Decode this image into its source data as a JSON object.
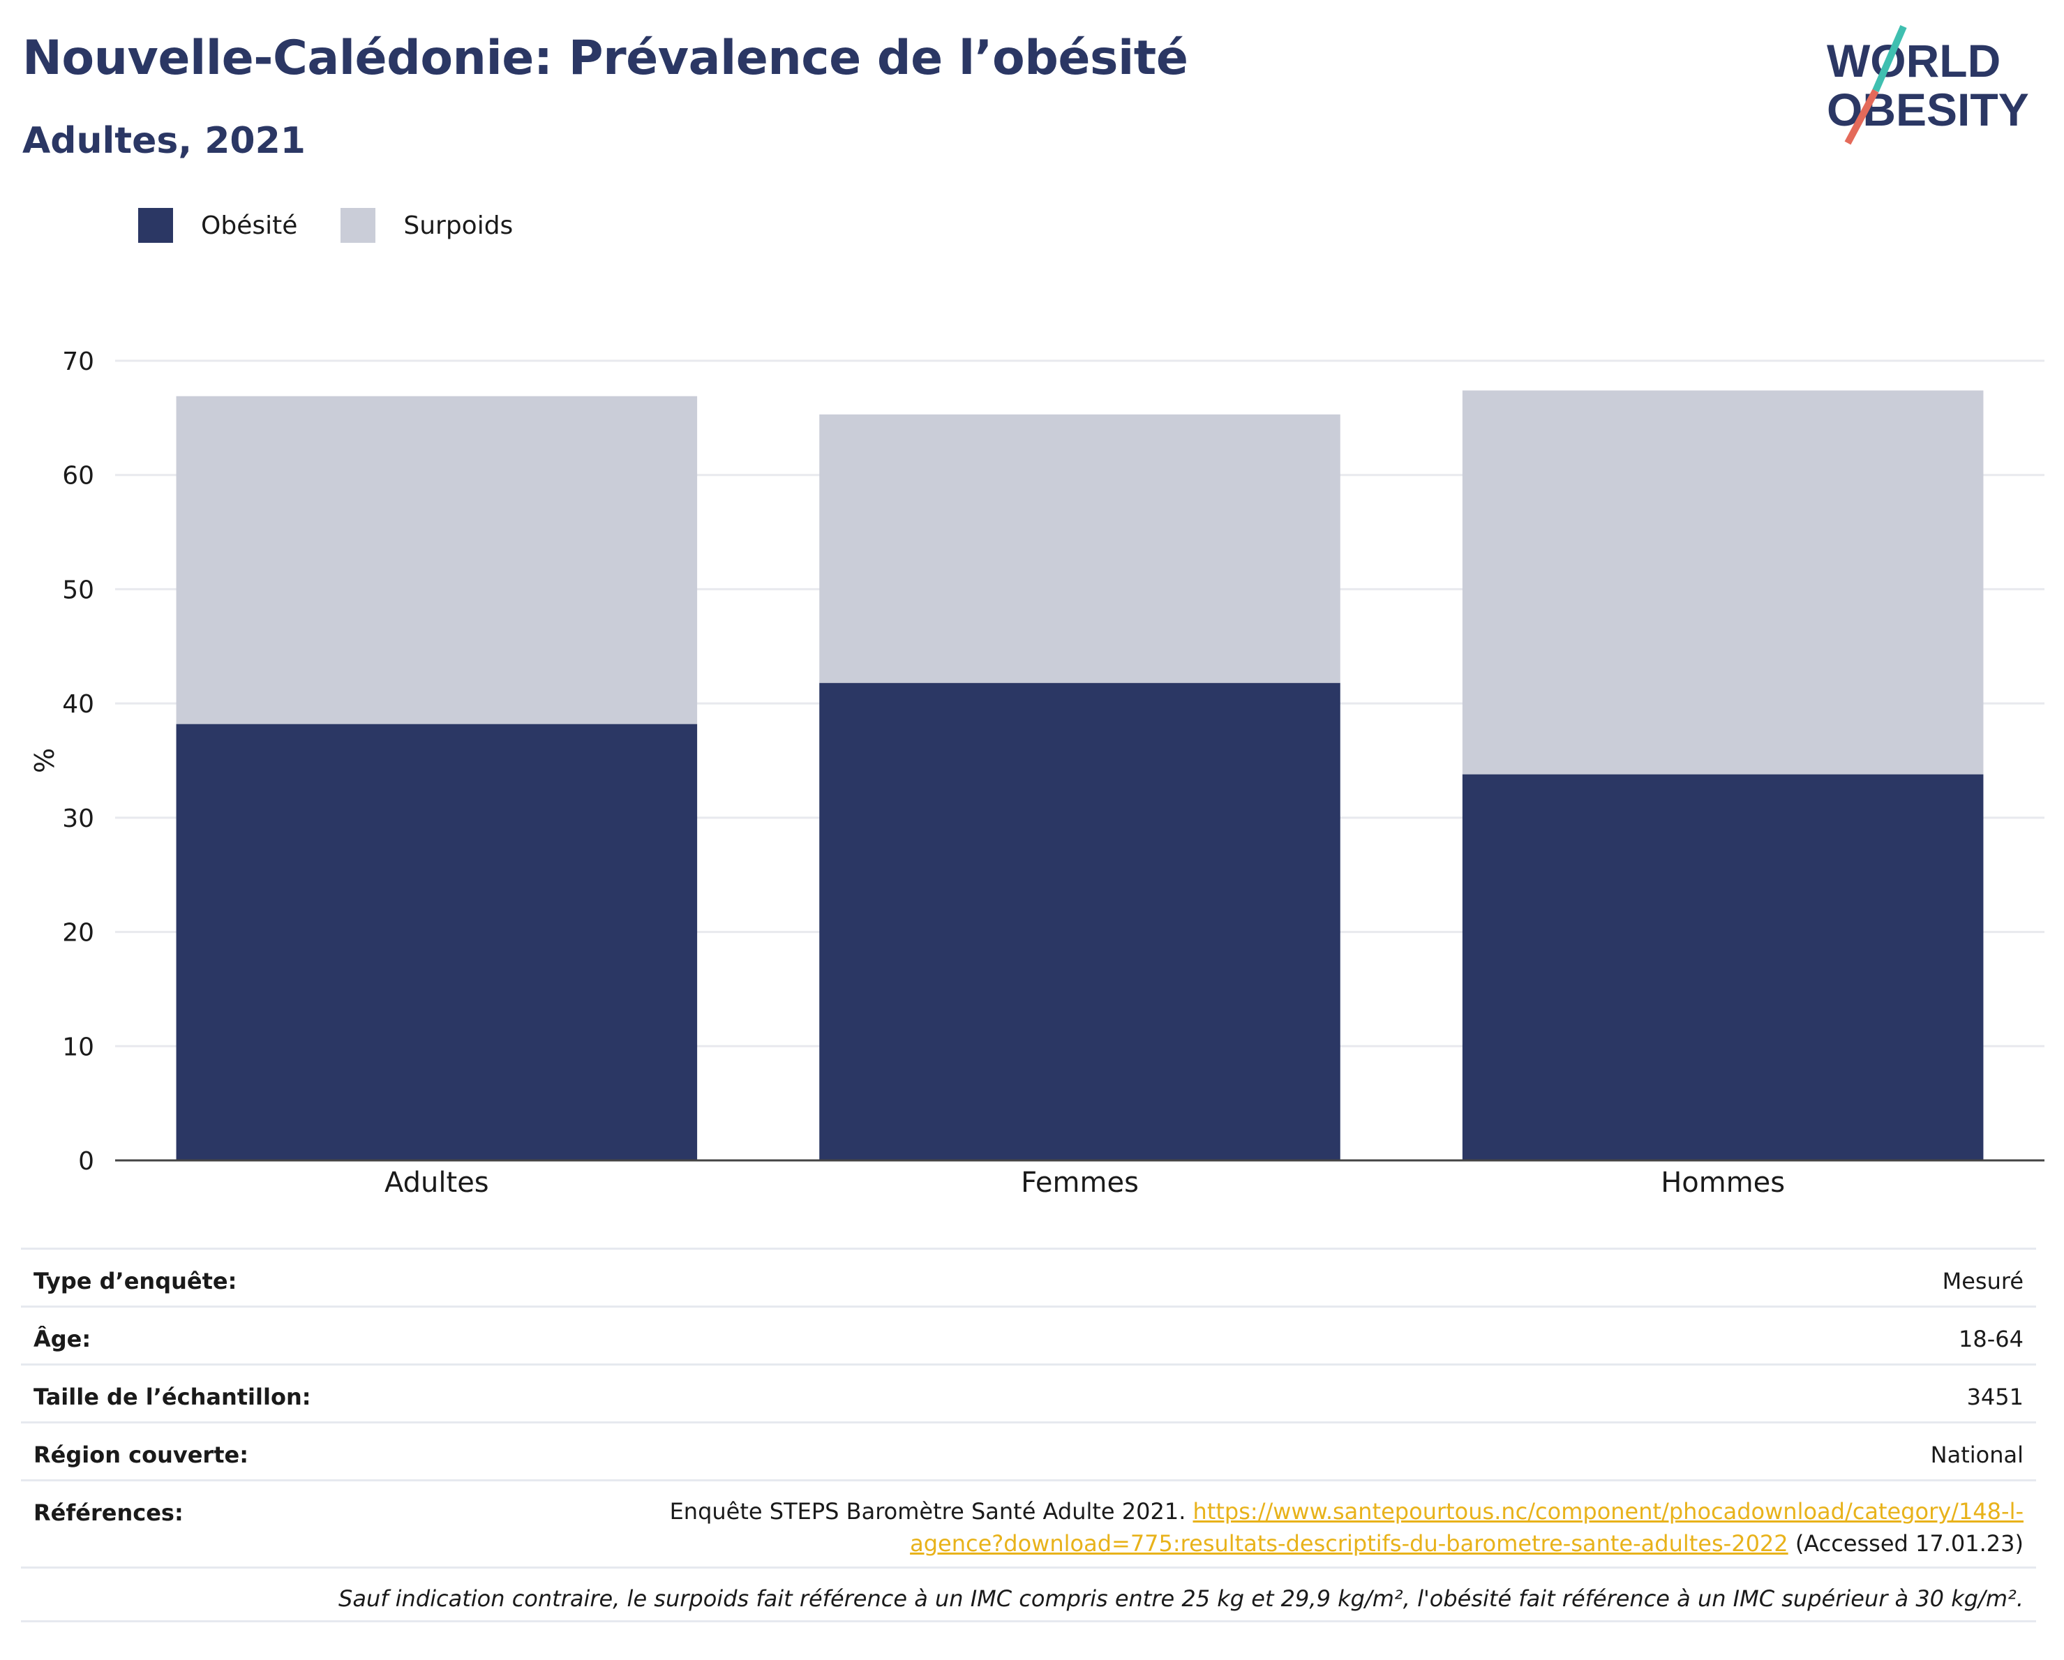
{
  "header": {
    "title": "Nouvelle-Calédonie: Prévalence de l’obésité",
    "subtitle": "Adultes, 2021"
  },
  "logo": {
    "line1": "WORLD",
    "line2": "OBESITY"
  },
  "legend": [
    {
      "label": "Obésité",
      "color": "#2b3764"
    },
    {
      "label": "Surpoids",
      "color": "#cacdd8"
    }
  ],
  "chart_data": {
    "type": "bar",
    "stacked": true,
    "categories": [
      "Adultes",
      "Femmes",
      "Hommes"
    ],
    "series": [
      {
        "name": "Obésité",
        "values": [
          38.2,
          41.8,
          33.8
        ],
        "color": "#2b3764"
      },
      {
        "name": "Surpoids",
        "values": [
          28.7,
          23.5,
          33.6
        ],
        "color": "#cacdd8"
      }
    ],
    "ylabel": "%",
    "ylim": [
      0,
      70
    ],
    "yticks": [
      0,
      10,
      20,
      30,
      40,
      50,
      60,
      70
    ],
    "grid": true,
    "legend_position": "top-left"
  },
  "info": {
    "rows": [
      {
        "key": "Type d’enquête:",
        "value": "Mesuré"
      },
      {
        "key": "Âge:",
        "value": "18-64"
      },
      {
        "key": "Taille de l’échantillon:",
        "value": "3451"
      },
      {
        "key": "Région couverte:",
        "value": "National"
      }
    ],
    "references": {
      "key": "Références:",
      "text": "Enquête STEPS Baromètre Santé Adulte 2021.",
      "link_part1": "https://www.santepourtous.nc/component/phocadownload/category/148-l-",
      "link_part2": "agence?download=775:resultats-descriptifs-du-barometre-sante-adultes-2022",
      "accessed": "(Accessed 17.01.23)"
    },
    "note": "Sauf indication contraire, le surpoids fait référence à un IMC compris entre 25 kg et 29,9 kg/m², l'obésité fait référence à un IMC supérieur à 30 kg/m²."
  }
}
